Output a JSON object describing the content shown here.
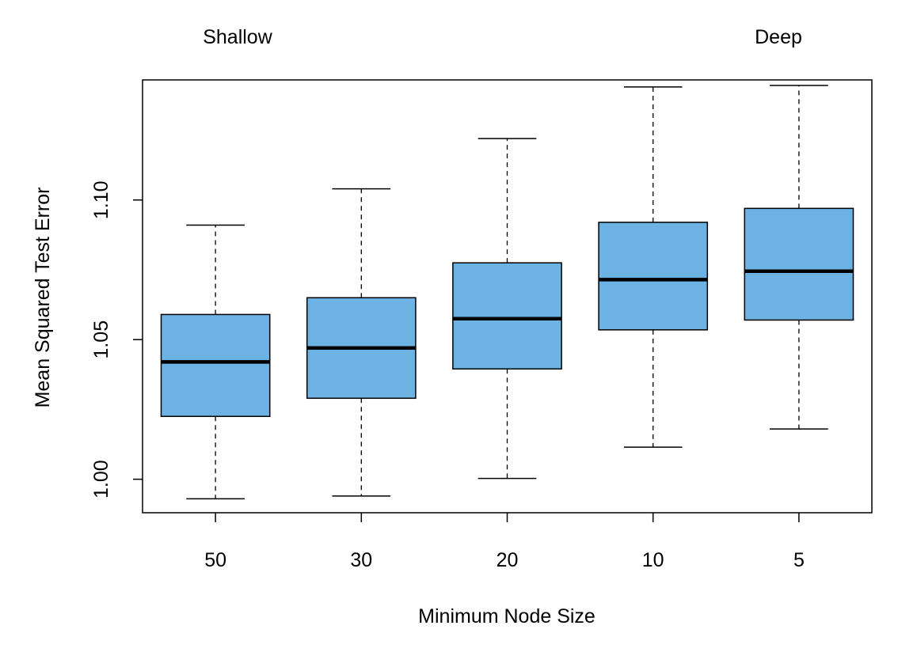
{
  "chart_data": {
    "type": "boxplot",
    "xlabel": "Minimum Node Size",
    "ylabel": "Mean Squared Test Error",
    "categories": [
      "50",
      "30",
      "20",
      "10",
      "5"
    ],
    "ylim": [
      0.988,
      1.143
    ],
    "y_ticks": [
      "1.00",
      "1.05",
      "1.10"
    ],
    "y_tick_values": [
      1.0,
      1.05,
      1.1
    ],
    "annotations": {
      "left": "Shallow",
      "right": "Deep"
    },
    "box_color": "#6cb2e3",
    "grid": false,
    "boxes": [
      {
        "category": "50",
        "whisker_low": 0.993,
        "q1": 1.0225,
        "median": 1.042,
        "q3": 1.059,
        "whisker_high": 1.091
      },
      {
        "category": "30",
        "whisker_low": 0.994,
        "q1": 1.029,
        "median": 1.047,
        "q3": 1.065,
        "whisker_high": 1.104
      },
      {
        "category": "20",
        "whisker_low": 1.0003,
        "q1": 1.0395,
        "median": 1.0575,
        "q3": 1.0775,
        "whisker_high": 1.122
      },
      {
        "category": "10",
        "whisker_low": 1.0115,
        "q1": 1.0535,
        "median": 1.0715,
        "q3": 1.092,
        "whisker_high": 1.1405
      },
      {
        "category": "5",
        "whisker_low": 1.018,
        "q1": 1.057,
        "median": 1.0745,
        "q3": 1.097,
        "whisker_high": 1.141
      }
    ]
  }
}
